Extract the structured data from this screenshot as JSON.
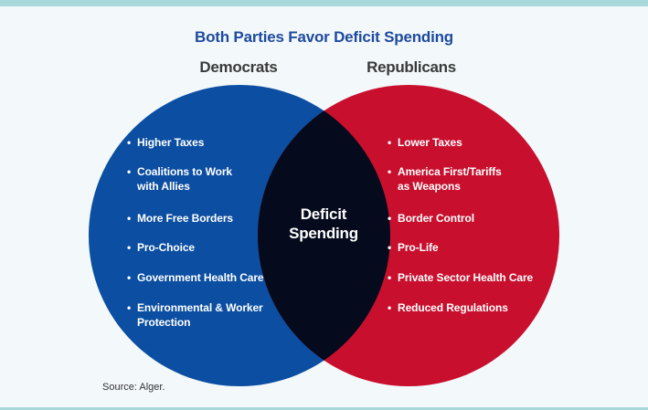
{
  "title": "Both Parties Favor Deficit Spending",
  "colors": {
    "title": "#1e4a9e",
    "labels": "#3a3a3a",
    "democrats": "#0b4ea2",
    "republicans": "#c8102e",
    "overlap": "#050a1c",
    "accent_rule": "#a9d8db"
  },
  "sets": {
    "democrats": {
      "label": "Democrats",
      "items": [
        [
          "Higher Taxes"
        ],
        [
          "Coalitions to Work",
          "with Allies"
        ],
        [
          "More Free Borders"
        ],
        [
          "Pro-Choice"
        ],
        [
          "Government Health Care"
        ],
        [
          "Environmental & Worker",
          "Protection"
        ]
      ]
    },
    "republicans": {
      "label": "Republicans",
      "items": [
        [
          "Lower Taxes"
        ],
        [
          "America First/Tariffs",
          "as Weapons"
        ],
        [
          "Border Control"
        ],
        [
          "Pro-Life"
        ],
        [
          "Private Sector Health Care"
        ],
        [
          "Reduced Regulations"
        ]
      ]
    }
  },
  "overlap": {
    "line1": "Deficit",
    "line2": "Spending"
  },
  "source": "Source: Alger.",
  "bullet": "•"
}
